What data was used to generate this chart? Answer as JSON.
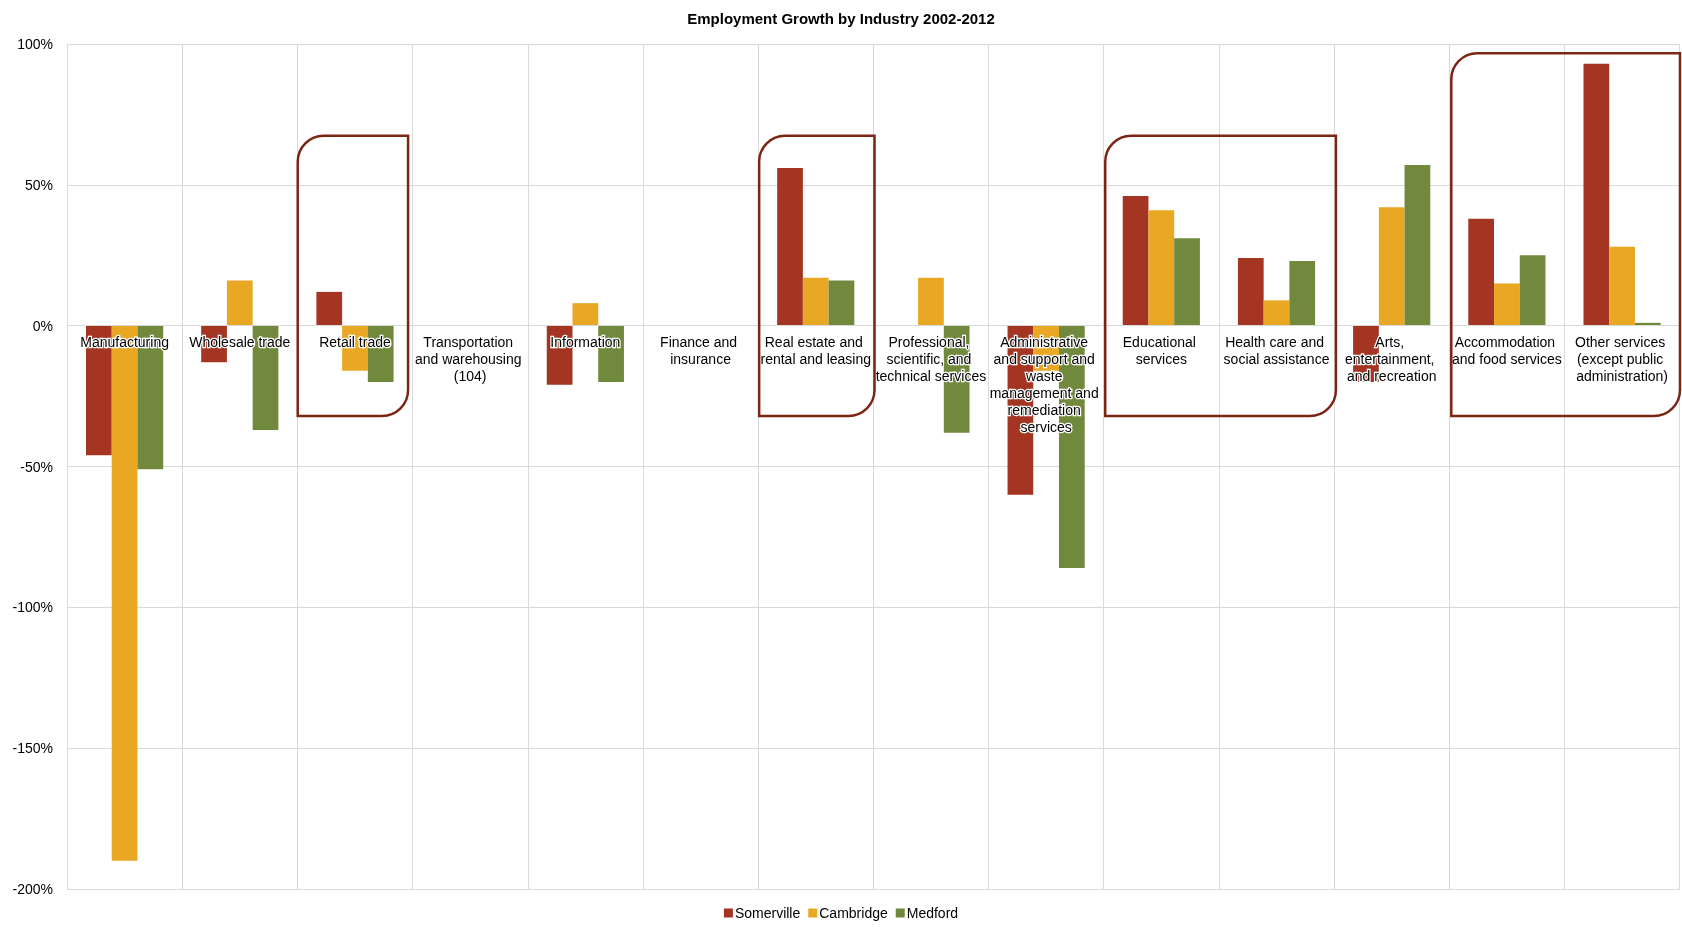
{
  "chart_data": {
    "type": "bar",
    "title": "Employment Growth by Industry 2002-2012",
    "categories": [
      "Manufacturing",
      "Wholesale trade",
      "Retail trade",
      "Transportation and warehousing (104)",
      "Information",
      "Finance and insurance",
      "Real estate and rental and leasing",
      "Professional, scientific, and technical services",
      "Administrative and support and waste management and remediation services",
      "Educational services",
      "Health care and social assistance",
      "Arts, entertainment, and recreation",
      "Accommodation and food services",
      "Other services (except public administration)"
    ],
    "series": [
      {
        "name": "Somerville",
        "color": "#a33522",
        "values": [
          -46,
          -13,
          12,
          null,
          -21,
          null,
          56,
          null,
          -60,
          46,
          24,
          -20,
          38,
          93
        ]
      },
      {
        "name": "Cambridge",
        "color": "#e9a823",
        "values": [
          -190,
          16,
          -16,
          null,
          8,
          null,
          17,
          17,
          -16,
          41,
          9,
          42,
          15,
          28
        ]
      },
      {
        "name": "Medford",
        "color": "#70893c",
        "values": [
          -51,
          -37,
          -20,
          null,
          -20,
          null,
          16,
          -38,
          -86,
          31,
          23,
          57,
          25,
          1
        ]
      }
    ],
    "ylim": [
      -200,
      100
    ],
    "yticks": [
      {
        "value": -200,
        "label": "-200%"
      },
      {
        "value": -150,
        "label": "-150%"
      },
      {
        "value": -100,
        "label": "-100%"
      },
      {
        "value": -50,
        "label": "-50%"
      },
      {
        "value": 0,
        "label": "0%"
      },
      {
        "value": 50,
        "label": "50%"
      },
      {
        "value": 100,
        "label": "100%"
      }
    ],
    "grid": true,
    "legend": "bottom"
  }
}
